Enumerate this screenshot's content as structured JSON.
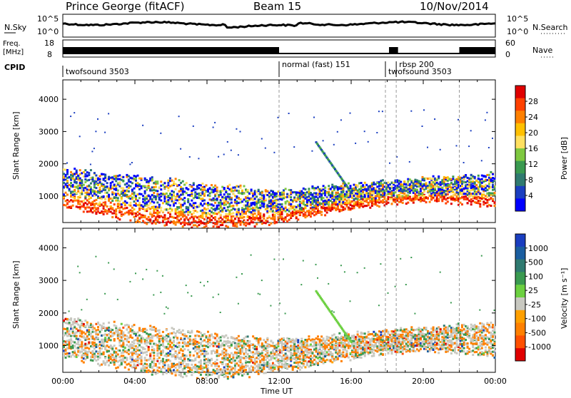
{
  "header": {
    "station": "Prince George (fitACF)",
    "beam": "Beam 15",
    "date": "10/Nov/2014"
  },
  "summary": {
    "nsky_label": "N.Sky",
    "nsky_ticks": [
      "10^5",
      "10^0"
    ],
    "nsearch_label": "N.Search",
    "nsearch_ticks": [
      "10^5",
      "10^0"
    ],
    "freq_label": "Freq.",
    "freq_unit": "[MHz]",
    "freq_ticks": [
      "18",
      "8"
    ],
    "nave_label": "Nave",
    "nave_ticks": [
      "60",
      "0"
    ],
    "cpid_label": "CPID",
    "cpid_segments": [
      {
        "name": "twofsound 3503",
        "start_hr": 0.0,
        "end_hr": 12.0
      },
      {
        "name": "normal (fast) 151",
        "start_hr": 12.0,
        "end_hr": 17.9
      },
      {
        "name": "twofsound 3503",
        "start_hr": 17.9,
        "end_hr": 18.5
      },
      {
        "name": "rbsp 200",
        "start_hr": 18.5,
        "end_hr": 22.0
      }
    ]
  },
  "chart_data": [
    {
      "type": "heatmap",
      "title": "Power",
      "xlabel": "Time UT",
      "ylabel": "Slant Range [km]",
      "xlim_hours": [
        0,
        24
      ],
      "ylim_km": [
        180,
        4600
      ],
      "yticks": [
        "1000",
        "2000",
        "3000",
        "4000"
      ],
      "colorbar_label": "Power [dB]",
      "colorbar_ticks": [
        "28",
        "24",
        "20",
        "16",
        "12",
        "8",
        "4"
      ],
      "colorbar_colors": [
        "#e00000",
        "#ff4000",
        "#ff8000",
        "#ffc000",
        "#ffe060",
        "#7ec840",
        "#3a9a50",
        "#2f7a70",
        "#1a3ec0",
        "#0000ff"
      ],
      "mode_change_hours": [
        12.0,
        17.9,
        18.5,
        22.0
      ]
    },
    {
      "type": "heatmap",
      "title": "Velocity",
      "xlabel": "Time UT",
      "ylabel": "Slant Range [km]",
      "xlim_hours": [
        0,
        24
      ],
      "ylim_km": [
        180,
        4600
      ],
      "yticks": [
        "1000",
        "2000",
        "3000",
        "4000"
      ],
      "colorbar_label": "Velocity [m s⁻¹]",
      "colorbar_ticks": [
        "1000",
        "500",
        "100",
        "25",
        "-25",
        "-100",
        "-500",
        "-1000"
      ],
      "colorbar_colors": [
        "#1a3ec0",
        "#1a5ea0",
        "#2f7a70",
        "#3a9a50",
        "#6cd040",
        "#c8c8c0",
        "#ffa000",
        "#ff8000",
        "#ff5000",
        "#e00000"
      ],
      "mode_change_hours": [
        12.0,
        17.9,
        18.5,
        22.0
      ]
    }
  ],
  "xaxis": {
    "ticks": [
      "00:00",
      "04:00",
      "08:00",
      "12:00",
      "16:00",
      "20:00",
      "00:00"
    ],
    "label": "Time UT"
  }
}
